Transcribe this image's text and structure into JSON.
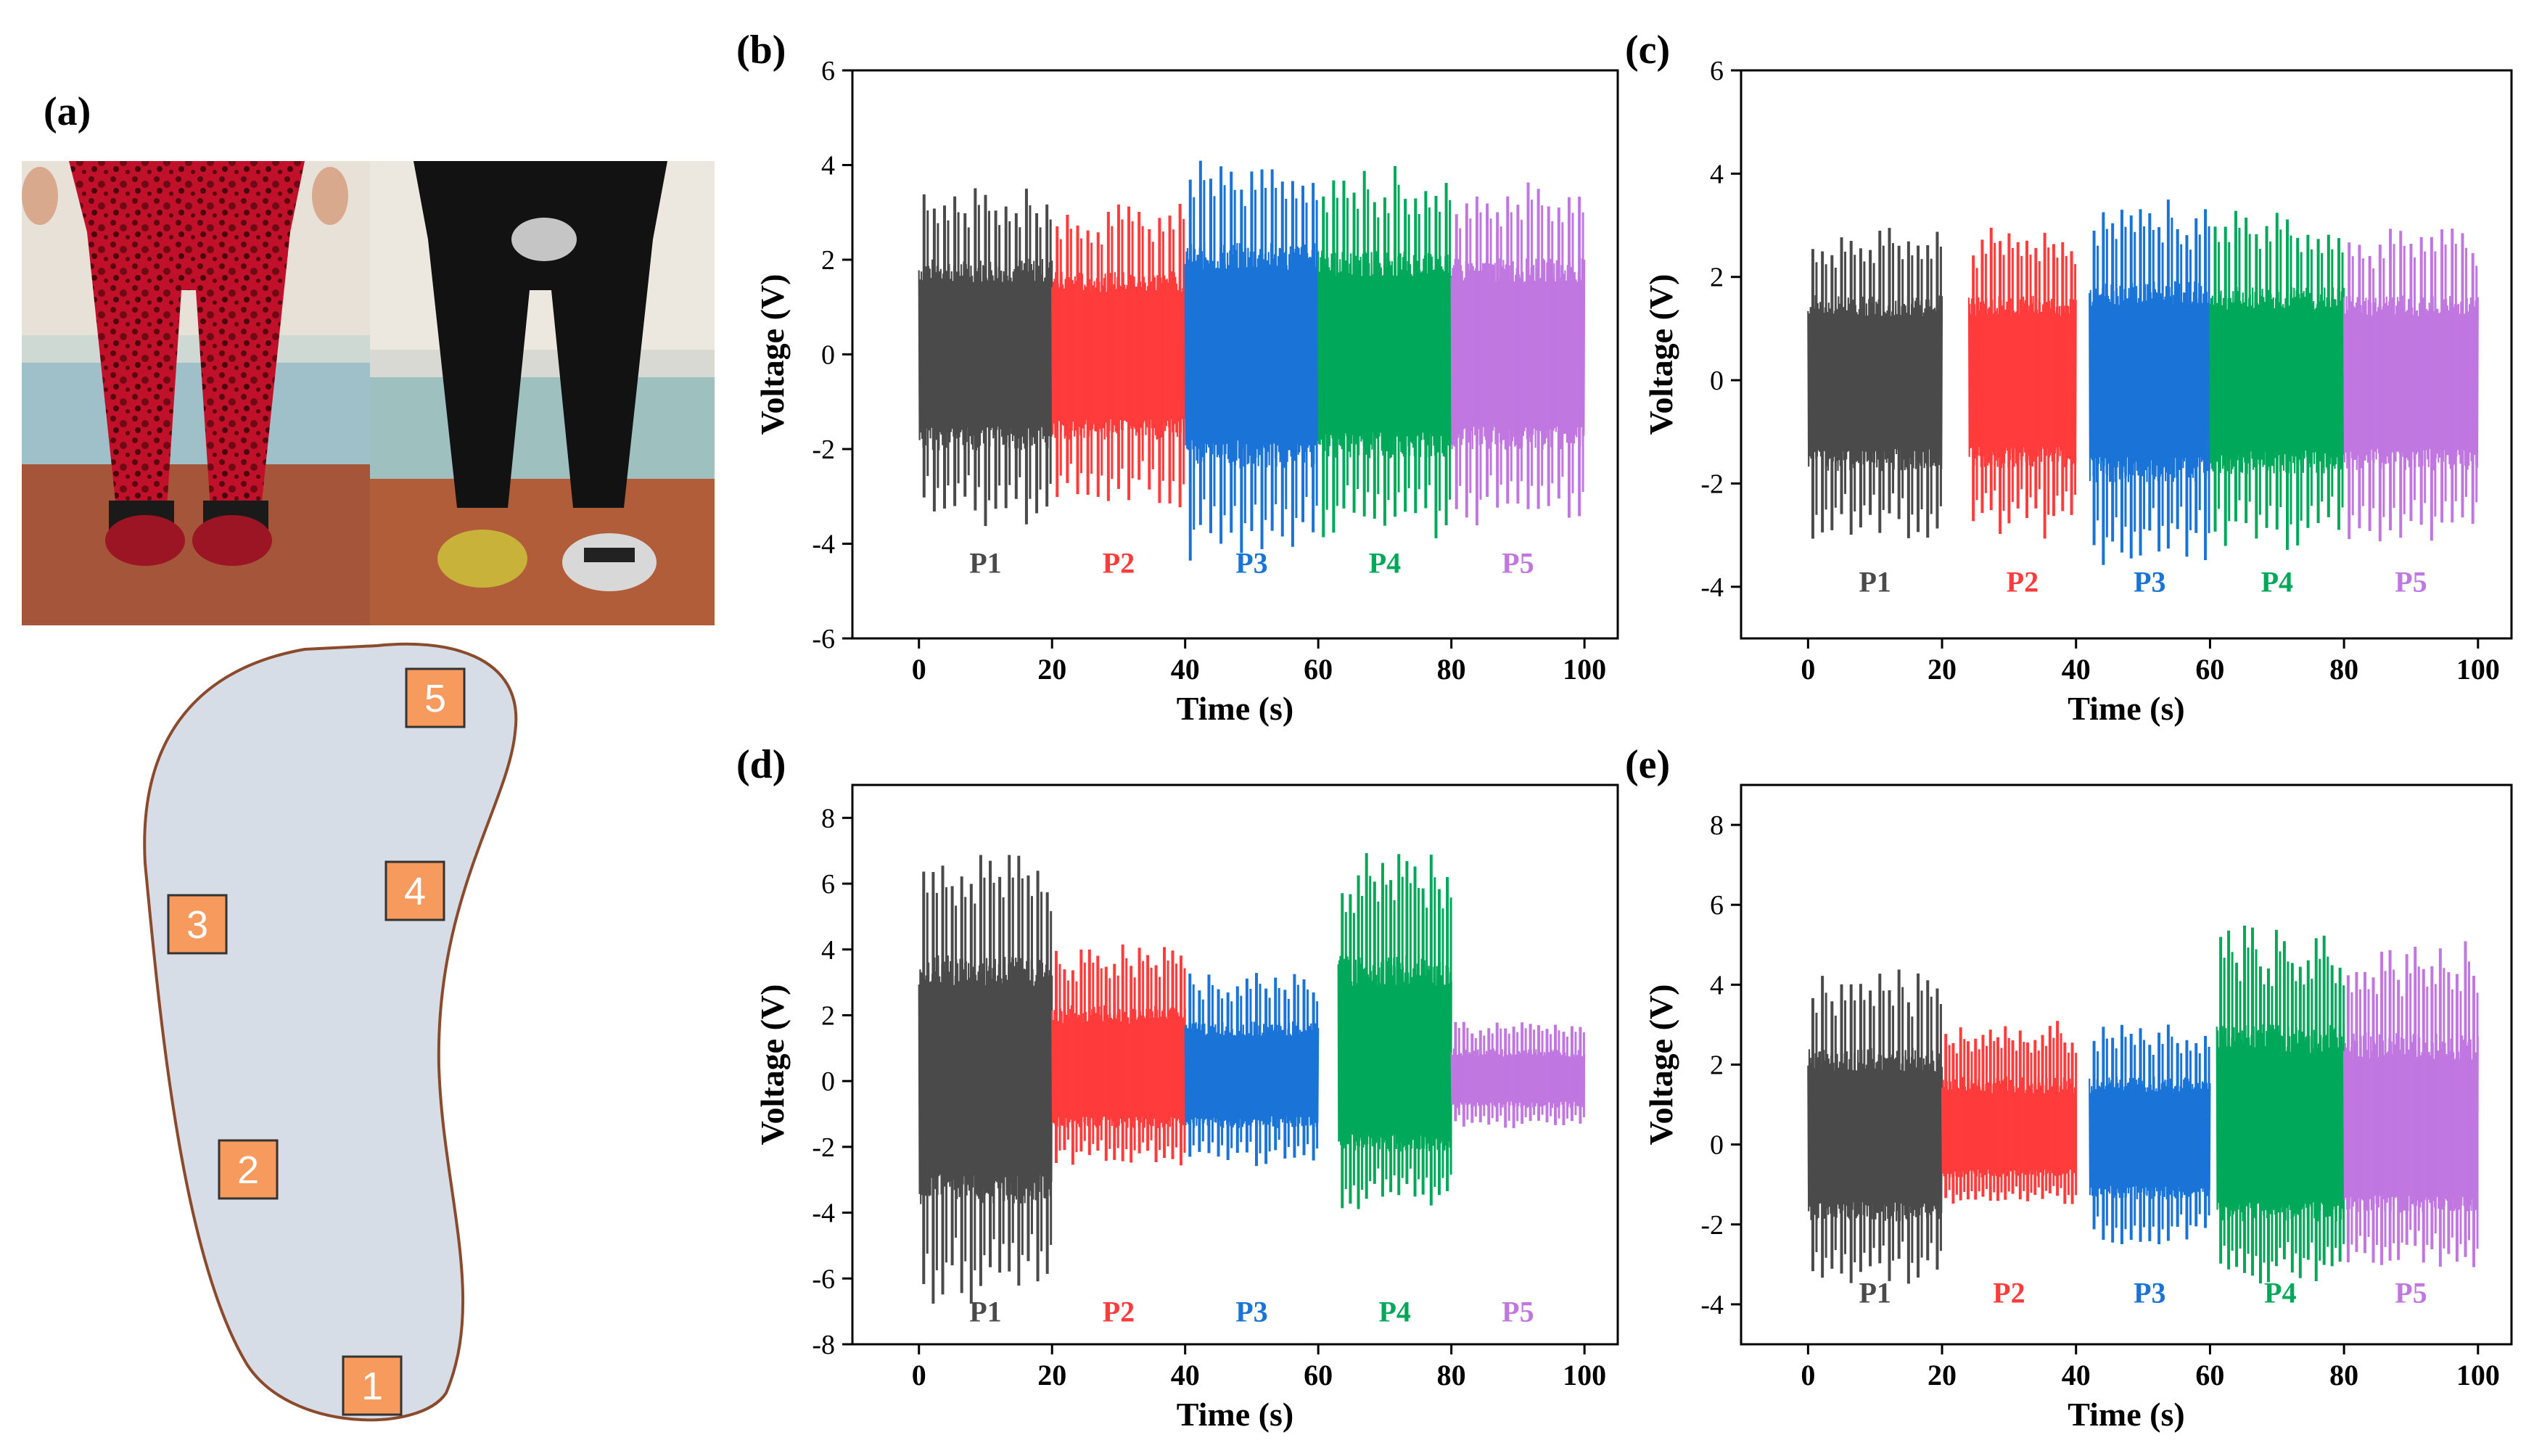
{
  "figure": {
    "panel_labels": [
      "(a)",
      "(b)",
      "(c)",
      "(d)",
      "(e)"
    ],
    "insole_sensors": [
      "1",
      "2",
      "3",
      "4",
      "5"
    ],
    "photo_description_names": [
      "red-pants-photo",
      "black-pants-photo"
    ]
  },
  "colors": {
    "P1": "#4a4a4a",
    "P2": "#ff3b3b",
    "P3": "#1a74d8",
    "P4": "#00a85a",
    "P5": "#c077e0",
    "insole_fill": "#d6dde6",
    "insole_stroke": "#8b4a2b",
    "sensor_fill": "#f79a5e"
  },
  "chart_data": [
    {
      "panel": "(b)",
      "type": "line",
      "title": "",
      "xlabel": "Time (s)",
      "ylabel": "Voltage (V)",
      "xlim": [
        -10,
        105
      ],
      "ylim": [
        -6,
        6
      ],
      "xticks": [
        0,
        20,
        40,
        60,
        80,
        100
      ],
      "yticks": [
        -6,
        -4,
        -2,
        0,
        2,
        4,
        6
      ],
      "series": [
        {
          "name": "P1",
          "x_range": [
            0,
            20
          ],
          "ymax": 3.7,
          "ymin": -3.7,
          "peaks": 13
        },
        {
          "name": "P2",
          "x_range": [
            20,
            40
          ],
          "ymax": 3.2,
          "ymin": -3.3,
          "peaks": 13
        },
        {
          "name": "P3",
          "x_range": [
            40,
            60
          ],
          "ymax": 4.3,
          "ymin": -4.4,
          "peaks": 13
        },
        {
          "name": "P4",
          "x_range": [
            60,
            80
          ],
          "ymax": 4.0,
          "ymin": -4.0,
          "peaks": 13
        },
        {
          "name": "P5",
          "x_range": [
            80,
            100
          ],
          "ymax": 3.7,
          "ymin": -3.7,
          "peaks": 13
        }
      ],
      "legend": [
        "P1",
        "P2",
        "P3",
        "P4",
        "P5"
      ],
      "legend_y": -4.4
    },
    {
      "panel": "(c)",
      "type": "line",
      "title": "",
      "xlabel": "Time (s)",
      "ylabel": "Voltage (V)",
      "xlim": [
        -10,
        105
      ],
      "ylim": [
        -5,
        6
      ],
      "xticks": [
        0,
        20,
        40,
        60,
        80,
        100
      ],
      "yticks": [
        -4,
        -2,
        0,
        2,
        4,
        6
      ],
      "series": [
        {
          "name": "P1",
          "x_range": [
            0,
            20
          ],
          "ymax": 3.0,
          "ymin": -3.2,
          "peaks": 14
        },
        {
          "name": "P2",
          "x_range": [
            24,
            40
          ],
          "ymax": 3.0,
          "ymin": -3.1,
          "peaks": 12
        },
        {
          "name": "P3",
          "x_range": [
            42,
            60
          ],
          "ymax": 3.5,
          "ymin": -3.6,
          "peaks": 13
        },
        {
          "name": "P4",
          "x_range": [
            60,
            80
          ],
          "ymax": 3.3,
          "ymin": -3.3,
          "peaks": 13
        },
        {
          "name": "P5",
          "x_range": [
            80,
            100
          ],
          "ymax": 3.0,
          "ymin": -3.2,
          "peaks": 13
        }
      ],
      "legend": [
        "P1",
        "P2",
        "P3",
        "P4",
        "P5"
      ],
      "legend_y": -3.9
    },
    {
      "panel": "(d)",
      "type": "line",
      "title": "",
      "xlabel": "Time (s)",
      "ylabel": "Voltage (V)",
      "xlim": [
        -10,
        105
      ],
      "ylim": [
        -8,
        9
      ],
      "xticks": [
        0,
        20,
        40,
        60,
        80,
        100
      ],
      "yticks": [
        -8,
        -6,
        -4,
        -2,
        0,
        2,
        4,
        6,
        8
      ],
      "series": [
        {
          "name": "P1",
          "x_range": [
            0,
            20
          ],
          "ymax": 7.0,
          "ymin": -6.8,
          "peaks": 14
        },
        {
          "name": "P2",
          "x_range": [
            20,
            40
          ],
          "ymax": 4.2,
          "ymin": -2.6,
          "peaks": 16
        },
        {
          "name": "P3",
          "x_range": [
            40,
            60
          ],
          "ymax": 3.3,
          "ymin": -2.6,
          "peaks": 14
        },
        {
          "name": "P4",
          "x_range": [
            63,
            80
          ],
          "ymax": 7.0,
          "ymin": -3.9,
          "peaks": 14
        },
        {
          "name": "P5",
          "x_range": [
            80,
            100
          ],
          "ymax": 1.8,
          "ymin": -1.5,
          "peaks": 16
        }
      ],
      "legend": [
        "P1",
        "P2",
        "P3",
        "P4",
        "P5"
      ],
      "legend_y": -7.0
    },
    {
      "panel": "(e)",
      "type": "line",
      "title": "",
      "xlabel": "Time (s)",
      "ylabel": "Voltage (V)",
      "xlim": [
        -10,
        105
      ],
      "ylim": [
        -5,
        9
      ],
      "xticks": [
        0,
        20,
        40,
        60,
        80,
        100
      ],
      "yticks": [
        -4,
        -2,
        0,
        2,
        4,
        6,
        8
      ],
      "series": [
        {
          "name": "P1",
          "x_range": [
            0,
            20
          ],
          "ymax": 4.4,
          "ymin": -3.5,
          "peaks": 14
        },
        {
          "name": "P2",
          "x_range": [
            20,
            40
          ],
          "ymax": 3.1,
          "ymin": -1.5,
          "peaks": 18
        },
        {
          "name": "P3",
          "x_range": [
            42,
            60
          ],
          "ymax": 3.1,
          "ymin": -2.5,
          "peaks": 13
        },
        {
          "name": "P4",
          "x_range": [
            61,
            80
          ],
          "ymax": 5.5,
          "ymin": -3.5,
          "peaks": 16
        },
        {
          "name": "P5",
          "x_range": [
            80,
            100
          ],
          "ymax": 5.1,
          "ymin": -3.1,
          "peaks": 16
        }
      ],
      "legend": [
        "P1",
        "P2",
        "P3",
        "P4",
        "P5"
      ],
      "legend_y": -3.7
    }
  ]
}
